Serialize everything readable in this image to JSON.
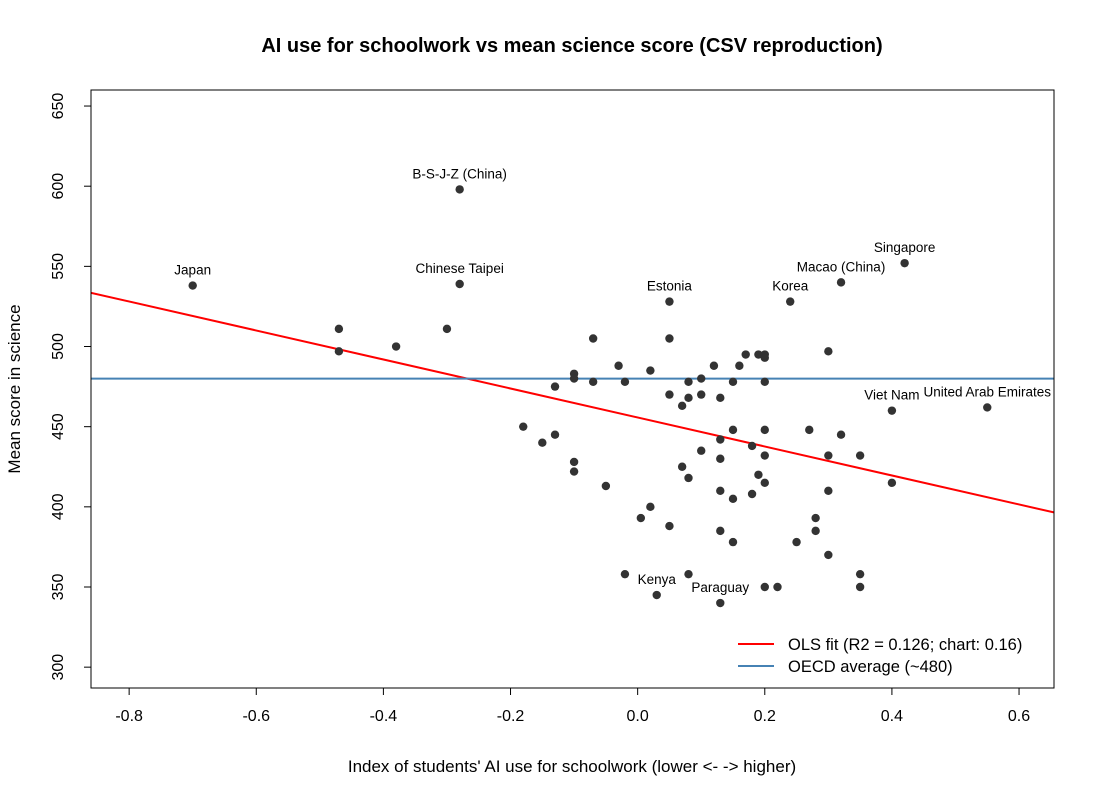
{
  "chart_data": {
    "type": "scatter",
    "title": "AI use for schoolwork vs mean science score (CSV reproduction)",
    "xlabel": "Index of students' AI use for schoolwork (lower <- -> higher)",
    "ylabel": "Mean score in science",
    "xlim": [
      -0.86,
      0.655
    ],
    "ylim": [
      287,
      660
    ],
    "x_ticks": [
      -0.8,
      -0.6,
      -0.4,
      -0.2,
      0.0,
      0.2,
      0.4,
      0.6
    ],
    "x_tick_labels": [
      "-0.8",
      "-0.6",
      "-0.4",
      "-0.2",
      "0.0",
      "0.2",
      "0.4",
      "0.6"
    ],
    "y_ticks": [
      300,
      350,
      400,
      450,
      500,
      550,
      600,
      650
    ],
    "y_tick_labels": [
      "300",
      "350",
      "400",
      "450",
      "500",
      "550",
      "600",
      "650"
    ],
    "grid": false,
    "point_color": "#333333",
    "points": [
      {
        "x": -0.7,
        "y": 538,
        "label": "Japan"
      },
      {
        "x": -0.28,
        "y": 598,
        "label": "B-S-J-Z (China)"
      },
      {
        "x": -0.28,
        "y": 539,
        "label": "Chinese Taipei"
      },
      {
        "x": 0.05,
        "y": 528,
        "label": "Estonia"
      },
      {
        "x": 0.24,
        "y": 528,
        "label": "Korea"
      },
      {
        "x": 0.32,
        "y": 540,
        "label": "Macao (China)"
      },
      {
        "x": 0.42,
        "y": 552,
        "label": "Singapore"
      },
      {
        "x": 0.4,
        "y": 460,
        "label": "Viet Nam"
      },
      {
        "x": 0.55,
        "y": 462,
        "label": "United Arab Emirates"
      },
      {
        "x": 0.03,
        "y": 345,
        "label": "Kenya"
      },
      {
        "x": 0.13,
        "y": 340,
        "label": "Paraguay"
      },
      {
        "x": -0.47,
        "y": 511
      },
      {
        "x": -0.47,
        "y": 497
      },
      {
        "x": -0.38,
        "y": 500
      },
      {
        "x": -0.3,
        "y": 511
      },
      {
        "x": -0.18,
        "y": 450
      },
      {
        "x": -0.15,
        "y": 440
      },
      {
        "x": -0.13,
        "y": 475
      },
      {
        "x": -0.13,
        "y": 445
      },
      {
        "x": -0.1,
        "y": 483
      },
      {
        "x": -0.1,
        "y": 480
      },
      {
        "x": -0.1,
        "y": 428
      },
      {
        "x": -0.1,
        "y": 422
      },
      {
        "x": -0.07,
        "y": 505
      },
      {
        "x": -0.07,
        "y": 478
      },
      {
        "x": -0.05,
        "y": 413
      },
      {
        "x": -0.03,
        "y": 488
      },
      {
        "x": -0.02,
        "y": 478
      },
      {
        "x": -0.02,
        "y": 358
      },
      {
        "x": 0.005,
        "y": 393
      },
      {
        "x": 0.02,
        "y": 485
      },
      {
        "x": 0.02,
        "y": 400
      },
      {
        "x": 0.05,
        "y": 505
      },
      {
        "x": 0.05,
        "y": 470
      },
      {
        "x": 0.05,
        "y": 388
      },
      {
        "x": 0.07,
        "y": 463
      },
      {
        "x": 0.07,
        "y": 425
      },
      {
        "x": 0.08,
        "y": 478
      },
      {
        "x": 0.08,
        "y": 468
      },
      {
        "x": 0.08,
        "y": 418
      },
      {
        "x": 0.08,
        "y": 358
      },
      {
        "x": 0.1,
        "y": 480
      },
      {
        "x": 0.1,
        "y": 470
      },
      {
        "x": 0.1,
        "y": 435
      },
      {
        "x": 0.12,
        "y": 488
      },
      {
        "x": 0.13,
        "y": 468
      },
      {
        "x": 0.13,
        "y": 442
      },
      {
        "x": 0.13,
        "y": 430
      },
      {
        "x": 0.13,
        "y": 410
      },
      {
        "x": 0.13,
        "y": 385
      },
      {
        "x": 0.15,
        "y": 478
      },
      {
        "x": 0.15,
        "y": 448
      },
      {
        "x": 0.15,
        "y": 405
      },
      {
        "x": 0.15,
        "y": 378
      },
      {
        "x": 0.16,
        "y": 488
      },
      {
        "x": 0.17,
        "y": 495
      },
      {
        "x": 0.18,
        "y": 438
      },
      {
        "x": 0.18,
        "y": 408
      },
      {
        "x": 0.19,
        "y": 495
      },
      {
        "x": 0.19,
        "y": 420
      },
      {
        "x": 0.2,
        "y": 495
      },
      {
        "x": 0.2,
        "y": 493
      },
      {
        "x": 0.2,
        "y": 478
      },
      {
        "x": 0.2,
        "y": 448
      },
      {
        "x": 0.2,
        "y": 432
      },
      {
        "x": 0.2,
        "y": 415
      },
      {
        "x": 0.2,
        "y": 350
      },
      {
        "x": 0.22,
        "y": 350
      },
      {
        "x": 0.25,
        "y": 378
      },
      {
        "x": 0.27,
        "y": 448
      },
      {
        "x": 0.28,
        "y": 393
      },
      {
        "x": 0.28,
        "y": 385
      },
      {
        "x": 0.3,
        "y": 497
      },
      {
        "x": 0.3,
        "y": 432
      },
      {
        "x": 0.3,
        "y": 410
      },
      {
        "x": 0.3,
        "y": 370
      },
      {
        "x": 0.32,
        "y": 445
      },
      {
        "x": 0.35,
        "y": 432
      },
      {
        "x": 0.35,
        "y": 358
      },
      {
        "x": 0.35,
        "y": 350
      },
      {
        "x": 0.4,
        "y": 415
      }
    ],
    "lines": [
      {
        "kind": "regression",
        "color": "#ff0000",
        "x": [
          -0.86,
          0.655
        ],
        "y": [
          533.5,
          396.5
        ]
      },
      {
        "kind": "horizontal",
        "color": "#4682b4",
        "y": 480
      }
    ],
    "legend": {
      "placement": "bottom-right",
      "entries": [
        {
          "label": "OLS fit (R2 = 0.126; chart: 0.16)",
          "color": "#ff0000"
        },
        {
          "label": "OECD average (~480)",
          "color": "#4682b4"
        }
      ]
    }
  }
}
